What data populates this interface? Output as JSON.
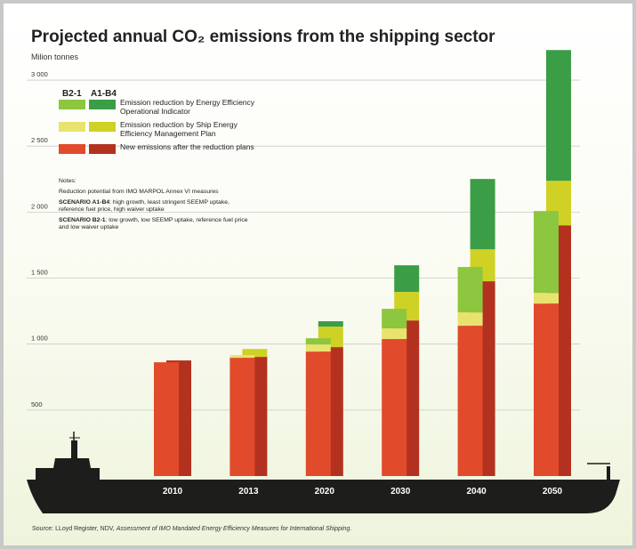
{
  "chart_data": {
    "type": "stacked-paired-bar",
    "title": "Projected annual CO₂ emissions from the shipping sector",
    "y_label": "Milion tonnes",
    "groups": [
      "B2-1",
      "A1-B4"
    ],
    "categories": [
      "2010",
      "2013",
      "2020",
      "2030",
      "2040",
      "2050"
    ],
    "series": [
      {
        "name": "Emission reduction by Energy Efficiency Operational Indicator",
        "colors": [
          "#8dc63f",
          "#3c9d47"
        ],
        "values": [
          [
            0,
            0,
            47,
            148,
            344,
            620
          ],
          [
            0,
            0,
            41,
            202,
            533,
            991
          ]
        ]
      },
      {
        "name": "Emission reduction by Ship Energy Efficiency Management Plan",
        "colors": [
          "#e8e36e",
          "#cfd224"
        ],
        "values": [
          [
            0,
            20,
            54,
            81,
            101,
            81
          ],
          [
            0,
            60,
            155,
            216,
            242,
            337
          ]
        ]
      },
      {
        "name": "New emissions after the reduction plans",
        "colors": [
          "#e14a2b",
          "#b3321f"
        ],
        "values": [
          [
            862,
            896,
            943,
            1038,
            1139,
            1307
          ],
          [
            876,
            903,
            977,
            1179,
            1476,
            1900
          ]
        ]
      }
    ],
    "ylim": [
      0,
      3270
    ],
    "yticks": [
      500,
      {
        "value": 1000,
        "label": "1 000"
      },
      {
        "value": 1500,
        "label": "1 500"
      },
      {
        "value": 2000,
        "label": "2 000"
      },
      {
        "value": 2500,
        "label": "2 500"
      },
      {
        "value": 3000,
        "label": "3 000"
      }
    ],
    "grid": true,
    "notes": [
      {
        "text": "Notes:"
      },
      {
        "text": "Reduction potential from IMO MARPOL Annex VI  measures"
      },
      {
        "label": "SCENARIO A1-B4",
        "text": ": high growth, least stringent SEEMP uptake, reference fuel price, high waiver uptake"
      },
      {
        "label": "SCENARIO B2-1",
        "text": ": low growth, low SEEMP uptake, reference fuel price and low waiver uptake"
      }
    ],
    "source": {
      "text": "Source: LLoyd Register, NDV,",
      "italic": "Assessment of IMO Mandated Energy Efficiency Measures for International Shipping."
    }
  }
}
